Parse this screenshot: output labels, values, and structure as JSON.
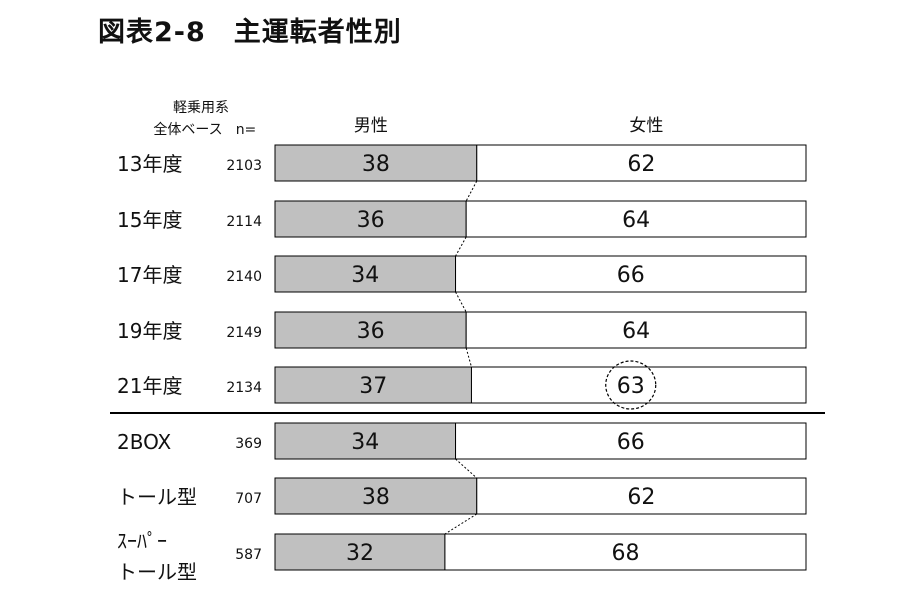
{
  "title": "図表2-8　主運転者性別",
  "chart_data": {
    "type": "bar",
    "stacked": "100%",
    "header_line1": "軽乗用系",
    "header_line2": "全体ベース",
    "n_label": "n=",
    "series": [
      {
        "name": "男性",
        "color": "#c0c0c0",
        "values": [
          38,
          36,
          34,
          36,
          37,
          34,
          38,
          32
        ]
      },
      {
        "name": "女性",
        "color": "#ffffff",
        "values": [
          62,
          64,
          66,
          64,
          63,
          66,
          62,
          68
        ]
      }
    ],
    "categories": [
      "13年度",
      "15年度",
      "17年度",
      "19年度",
      "21年度",
      "2BOX",
      "トール型",
      "スーパー トール型"
    ],
    "category_lines": [
      [
        "13年度"
      ],
      [
        "15年度"
      ],
      [
        "17年度"
      ],
      [
        "19年度"
      ],
      [
        "21年度"
      ],
      [
        "2BOX"
      ],
      [
        "トール型"
      ],
      [
        "ｽｰﾊﾟｰ",
        "トール型"
      ]
    ],
    "n": [
      "2103",
      "2114",
      "2140",
      "2149",
      "2134",
      "369",
      "707",
      "587"
    ],
    "highlighted": {
      "category": "21年度",
      "series": "女性"
    },
    "connector_lines_groups": [
      [
        0,
        4
      ],
      [
        5,
        7
      ]
    ],
    "separator_after_category": "21年度"
  }
}
